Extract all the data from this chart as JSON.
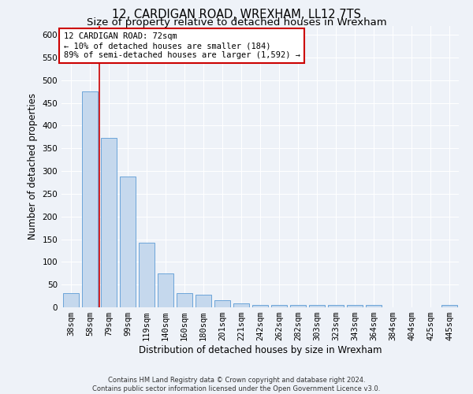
{
  "title": "12, CARDIGAN ROAD, WREXHAM, LL12 7TS",
  "subtitle": "Size of property relative to detached houses in Wrexham",
  "xlabel": "Distribution of detached houses by size in Wrexham",
  "ylabel": "Number of detached properties",
  "categories": [
    "38sqm",
    "58sqm",
    "79sqm",
    "99sqm",
    "119sqm",
    "140sqm",
    "160sqm",
    "180sqm",
    "201sqm",
    "221sqm",
    "242sqm",
    "262sqm",
    "282sqm",
    "303sqm",
    "323sqm",
    "343sqm",
    "364sqm",
    "384sqm",
    "404sqm",
    "425sqm",
    "445sqm"
  ],
  "values": [
    32,
    475,
    373,
    288,
    143,
    75,
    31,
    28,
    15,
    8,
    5,
    5,
    5,
    5,
    5,
    5,
    5,
    0,
    0,
    0,
    5
  ],
  "bar_color": "#c5d8ed",
  "bar_edge_color": "#5b9bd5",
  "vline_x": 1.5,
  "vline_color": "#cc0000",
  "annotation_text": "12 CARDIGAN ROAD: 72sqm\n← 10% of detached houses are smaller (184)\n89% of semi-detached houses are larger (1,592) →",
  "annotation_box_color": "#ffffff",
  "annotation_box_edge": "#cc0000",
  "footer_line1": "Contains HM Land Registry data © Crown copyright and database right 2024.",
  "footer_line2": "Contains public sector information licensed under the Open Government Licence v3.0.",
  "ylim": [
    0,
    620
  ],
  "yticks": [
    0,
    50,
    100,
    150,
    200,
    250,
    300,
    350,
    400,
    450,
    500,
    550,
    600
  ],
  "background_color": "#eef2f8",
  "grid_color": "#ffffff",
  "title_fontsize": 10.5,
  "subtitle_fontsize": 9.5,
  "tick_fontsize": 7.5,
  "label_fontsize": 8.5,
  "footer_fontsize": 6.0
}
